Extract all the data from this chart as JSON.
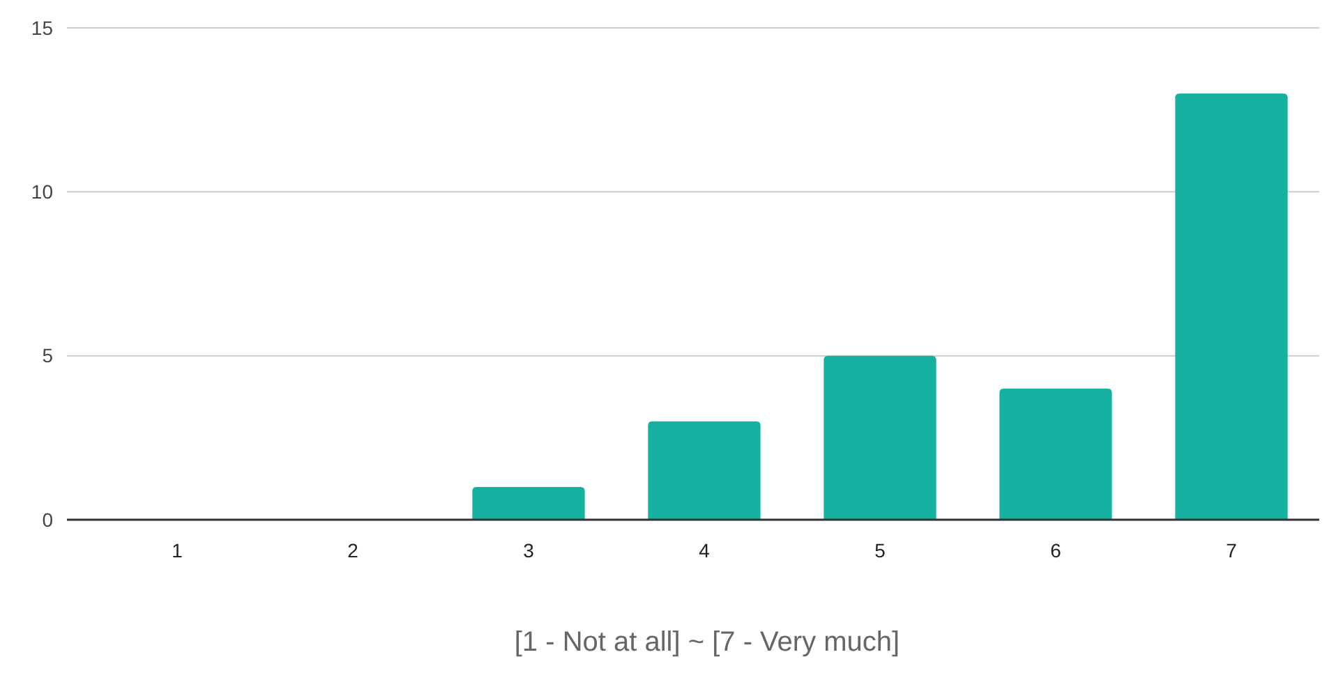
{
  "chart_data": {
    "type": "bar",
    "xlabel": "[1 - Not at all] ~ [7 - Very much]",
    "categories": [
      "1",
      "2",
      "3",
      "4",
      "5",
      "6",
      "7"
    ],
    "values": [
      0,
      0,
      1,
      3,
      5,
      4,
      13
    ],
    "color": "#14b1a0",
    "ylim": [
      0,
      15
    ],
    "yticks": [
      0,
      5,
      10,
      15
    ],
    "grid": "y"
  }
}
